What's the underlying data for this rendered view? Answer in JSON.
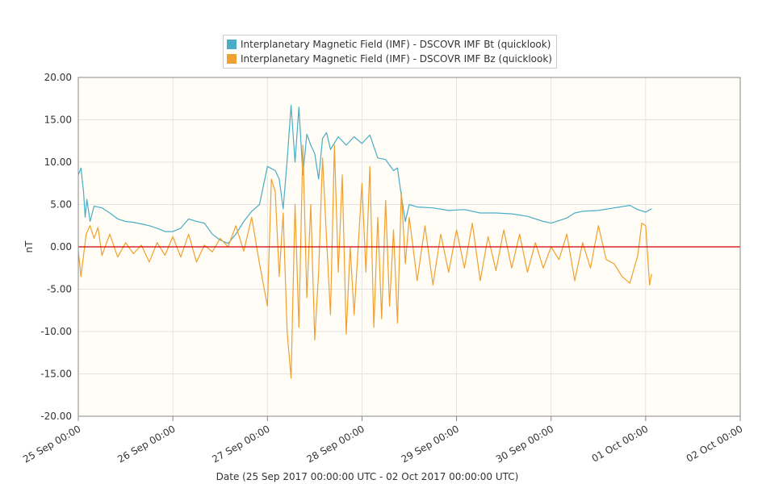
{
  "chart_data": {
    "type": "line",
    "title": "",
    "xlabel": "Date (25 Sep 2017 00:00:00 UTC - 02 Oct 2017 00:00:00 UTC)",
    "ylabel": "nT",
    "x_range": [
      "2017-09-25T00:00",
      "2017-10-02T00:00"
    ],
    "ylim": [
      -20,
      20
    ],
    "y_ticks": [
      -20,
      -15,
      -10,
      -5,
      0,
      5,
      10,
      15,
      20
    ],
    "y_tick_labels": [
      "-20.00",
      "-15.00",
      "-10.00",
      "-5.00",
      "0.00",
      "5.00",
      "10.00",
      "15.00",
      "20.00"
    ],
    "x_tick_labels": [
      "25 Sep 00:00",
      "26 Sep 00:00",
      "27 Sep 00:00",
      "28 Sep 00:00",
      "29 Sep 00:00",
      "30 Sep 00:00",
      "01 Oct 00:00",
      "02 Oct 00:00"
    ],
    "grid": true,
    "legend_position": "top-center",
    "plot_background": "#fffdf5",
    "reference_line": {
      "y": 0,
      "color": "#cc0000"
    },
    "series": [
      {
        "name": "Interplanetary Magnetic Field (IMF) - DSCOVR IMF Bt (quicklook)",
        "color": "#4aacc5",
        "points": [
          [
            "2017-09-25T00:00",
            8.5
          ],
          [
            "2017-09-25T00:40",
            9.3
          ],
          [
            "2017-09-25T01:20",
            6.5
          ],
          [
            "2017-09-25T01:45",
            3.5
          ],
          [
            "2017-09-25T02:10",
            5.6
          ],
          [
            "2017-09-25T03:00",
            3.0
          ],
          [
            "2017-09-25T04:00",
            4.8
          ],
          [
            "2017-09-25T06:00",
            4.6
          ],
          [
            "2017-09-25T08:00",
            4.0
          ],
          [
            "2017-09-25T10:00",
            3.3
          ],
          [
            "2017-09-25T12:00",
            3.0
          ],
          [
            "2017-09-25T14:00",
            2.9
          ],
          [
            "2017-09-25T16:00",
            2.7
          ],
          [
            "2017-09-25T18:00",
            2.5
          ],
          [
            "2017-09-25T20:00",
            2.2
          ],
          [
            "2017-09-25T22:00",
            1.8
          ],
          [
            "2017-09-26T00:00",
            1.8
          ],
          [
            "2017-09-26T02:00",
            2.2
          ],
          [
            "2017-09-26T04:00",
            3.3
          ],
          [
            "2017-09-26T06:00",
            3.0
          ],
          [
            "2017-09-26T08:00",
            2.8
          ],
          [
            "2017-09-26T10:00",
            1.5
          ],
          [
            "2017-09-26T12:00",
            0.8
          ],
          [
            "2017-09-26T14:00",
            0.4
          ],
          [
            "2017-09-26T16:00",
            1.5
          ],
          [
            "2017-09-26T18:00",
            3.0
          ],
          [
            "2017-09-26T20:00",
            4.2
          ],
          [
            "2017-09-26T22:00",
            5.0
          ],
          [
            "2017-09-27T00:00",
            9.5
          ],
          [
            "2017-09-27T02:00",
            9.0
          ],
          [
            "2017-09-27T03:00",
            8.0
          ],
          [
            "2017-09-27T04:00",
            4.5
          ],
          [
            "2017-09-27T05:00",
            10.2
          ],
          [
            "2017-09-27T06:00",
            16.7
          ],
          [
            "2017-09-27T07:00",
            10.0
          ],
          [
            "2017-09-27T08:00",
            16.5
          ],
          [
            "2017-09-27T09:00",
            8.5
          ],
          [
            "2017-09-27T10:00",
            13.3
          ],
          [
            "2017-09-27T11:00",
            12.0
          ],
          [
            "2017-09-27T12:00",
            11.0
          ],
          [
            "2017-09-27T13:00",
            8.0
          ],
          [
            "2017-09-27T14:00",
            12.8
          ],
          [
            "2017-09-27T15:00",
            13.5
          ],
          [
            "2017-09-27T16:00",
            11.5
          ],
          [
            "2017-09-27T18:00",
            13.0
          ],
          [
            "2017-09-27T20:00",
            12.0
          ],
          [
            "2017-09-27T22:00",
            13.0
          ],
          [
            "2017-09-28T00:00",
            12.2
          ],
          [
            "2017-09-28T02:00",
            13.2
          ],
          [
            "2017-09-28T04:00",
            10.5
          ],
          [
            "2017-09-28T06:00",
            10.3
          ],
          [
            "2017-09-28T08:00",
            9.0
          ],
          [
            "2017-09-28T09:00",
            9.3
          ],
          [
            "2017-09-28T10:00",
            6.0
          ],
          [
            "2017-09-28T11:00",
            3.0
          ],
          [
            "2017-09-28T12:00",
            5.0
          ],
          [
            "2017-09-28T14:00",
            4.7
          ],
          [
            "2017-09-28T18:00",
            4.6
          ],
          [
            "2017-09-28T22:00",
            4.3
          ],
          [
            "2017-09-29T02:00",
            4.4
          ],
          [
            "2017-09-29T06:00",
            4.0
          ],
          [
            "2017-09-29T10:00",
            4.0
          ],
          [
            "2017-09-29T14:00",
            3.9
          ],
          [
            "2017-09-29T18:00",
            3.6
          ],
          [
            "2017-09-29T22:00",
            3.0
          ],
          [
            "2017-09-30T00:00",
            2.8
          ],
          [
            "2017-09-30T02:00",
            3.1
          ],
          [
            "2017-09-30T04:00",
            3.4
          ],
          [
            "2017-09-30T06:00",
            4.0
          ],
          [
            "2017-09-30T08:00",
            4.2
          ],
          [
            "2017-09-30T12:00",
            4.3
          ],
          [
            "2017-09-30T16:00",
            4.6
          ],
          [
            "2017-09-30T20:00",
            4.9
          ],
          [
            "2017-09-30T22:00",
            4.4
          ],
          [
            "2017-10-01T00:00",
            4.1
          ],
          [
            "2017-10-01T01:30",
            4.5
          ]
        ]
      },
      {
        "name": "Interplanetary Magnetic Field (IMF) - DSCOVR IMF Bz (quicklook)",
        "color": "#f0a030",
        "points": [
          [
            "2017-09-25T00:00",
            -0.5
          ],
          [
            "2017-09-25T00:40",
            -3.5
          ],
          [
            "2017-09-25T01:20",
            -1.0
          ],
          [
            "2017-09-25T02:00",
            1.5
          ],
          [
            "2017-09-25T03:00",
            2.5
          ],
          [
            "2017-09-25T04:00",
            1.0
          ],
          [
            "2017-09-25T05:00",
            2.3
          ],
          [
            "2017-09-25T06:00",
            -1.0
          ],
          [
            "2017-09-25T08:00",
            1.5
          ],
          [
            "2017-09-25T10:00",
            -1.2
          ],
          [
            "2017-09-25T12:00",
            0.5
          ],
          [
            "2017-09-25T14:00",
            -0.8
          ],
          [
            "2017-09-25T16:00",
            0.2
          ],
          [
            "2017-09-25T18:00",
            -1.8
          ],
          [
            "2017-09-25T20:00",
            0.5
          ],
          [
            "2017-09-25T22:00",
            -1.0
          ],
          [
            "2017-09-26T00:00",
            1.2
          ],
          [
            "2017-09-26T02:00",
            -1.2
          ],
          [
            "2017-09-26T04:00",
            1.5
          ],
          [
            "2017-09-26T06:00",
            -1.8
          ],
          [
            "2017-09-26T08:00",
            0.2
          ],
          [
            "2017-09-26T10:00",
            -0.6
          ],
          [
            "2017-09-26T12:00",
            1.0
          ],
          [
            "2017-09-26T14:00",
            0.0
          ],
          [
            "2017-09-26T16:00",
            2.5
          ],
          [
            "2017-09-26T18:00",
            -0.5
          ],
          [
            "2017-09-26T20:00",
            3.5
          ],
          [
            "2017-09-26T22:00",
            -2.0
          ],
          [
            "2017-09-27T00:00",
            -7.0
          ],
          [
            "2017-09-27T01:00",
            8.0
          ],
          [
            "2017-09-27T02:00",
            6.5
          ],
          [
            "2017-09-27T03:00",
            -3.5
          ],
          [
            "2017-09-27T04:00",
            4.0
          ],
          [
            "2017-09-27T05:00",
            -10.0
          ],
          [
            "2017-09-27T06:00",
            -15.5
          ],
          [
            "2017-09-27T07:00",
            5.0
          ],
          [
            "2017-09-27T08:00",
            -9.5
          ],
          [
            "2017-09-27T09:00",
            12.0
          ],
          [
            "2017-09-27T10:00",
            -6.0
          ],
          [
            "2017-09-27T11:00",
            5.0
          ],
          [
            "2017-09-27T12:00",
            -11.0
          ],
          [
            "2017-09-27T13:00",
            -3.0
          ],
          [
            "2017-09-27T14:00",
            10.5
          ],
          [
            "2017-09-27T15:00",
            1.0
          ],
          [
            "2017-09-27T16:00",
            -8.0
          ],
          [
            "2017-09-27T17:00",
            12.0
          ],
          [
            "2017-09-27T18:00",
            -3.0
          ],
          [
            "2017-09-27T19:00",
            8.5
          ],
          [
            "2017-09-27T20:00",
            -10.3
          ],
          [
            "2017-09-27T21:00",
            0.0
          ],
          [
            "2017-09-27T22:00",
            -8.0
          ],
          [
            "2017-09-28T00:00",
            7.5
          ],
          [
            "2017-09-28T01:00",
            -3.0
          ],
          [
            "2017-09-28T02:00",
            9.5
          ],
          [
            "2017-09-28T03:00",
            -9.5
          ],
          [
            "2017-09-28T04:00",
            3.5
          ],
          [
            "2017-09-28T05:00",
            -8.5
          ],
          [
            "2017-09-28T06:00",
            5.5
          ],
          [
            "2017-09-28T07:00",
            -7.0
          ],
          [
            "2017-09-28T08:00",
            2.0
          ],
          [
            "2017-09-28T09:00",
            -9.0
          ],
          [
            "2017-09-28T10:00",
            6.5
          ],
          [
            "2017-09-28T11:00",
            -2.0
          ],
          [
            "2017-09-28T12:00",
            3.5
          ],
          [
            "2017-09-28T14:00",
            -4.0
          ],
          [
            "2017-09-28T16:00",
            2.5
          ],
          [
            "2017-09-28T18:00",
            -4.5
          ],
          [
            "2017-09-28T20:00",
            1.5
          ],
          [
            "2017-09-28T22:00",
            -3.0
          ],
          [
            "2017-09-29T00:00",
            2.0
          ],
          [
            "2017-09-29T02:00",
            -2.5
          ],
          [
            "2017-09-29T04:00",
            2.8
          ],
          [
            "2017-09-29T06:00",
            -4.0
          ],
          [
            "2017-09-29T08:00",
            1.2
          ],
          [
            "2017-09-29T10:00",
            -2.8
          ],
          [
            "2017-09-29T12:00",
            2.0
          ],
          [
            "2017-09-29T14:00",
            -2.5
          ],
          [
            "2017-09-29T16:00",
            1.5
          ],
          [
            "2017-09-29T18:00",
            -3.0
          ],
          [
            "2017-09-29T20:00",
            0.5
          ],
          [
            "2017-09-29T22:00",
            -2.5
          ],
          [
            "2017-09-30T00:00",
            0.0
          ],
          [
            "2017-09-30T02:00",
            -1.5
          ],
          [
            "2017-09-30T04:00",
            1.5
          ],
          [
            "2017-09-30T06:00",
            -4.0
          ],
          [
            "2017-09-30T08:00",
            0.5
          ],
          [
            "2017-09-30T10:00",
            -2.5
          ],
          [
            "2017-09-30T12:00",
            2.5
          ],
          [
            "2017-09-30T14:00",
            -1.5
          ],
          [
            "2017-09-30T16:00",
            -2.0
          ],
          [
            "2017-09-30T18:00",
            -3.5
          ],
          [
            "2017-09-30T20:00",
            -4.3
          ],
          [
            "2017-09-30T22:00",
            -1.0
          ],
          [
            "2017-09-30T23:00",
            2.8
          ],
          [
            "2017-10-01T00:00",
            2.5
          ],
          [
            "2017-10-01T01:00",
            -4.5
          ],
          [
            "2017-10-01T01:30",
            -3.2
          ]
        ]
      }
    ]
  }
}
